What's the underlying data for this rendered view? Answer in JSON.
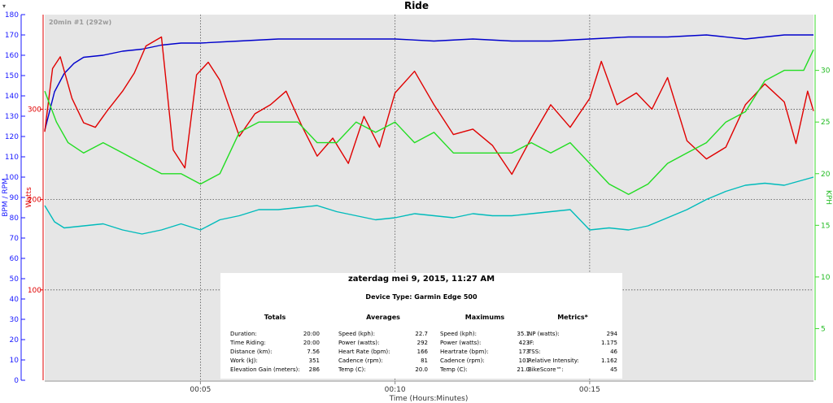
{
  "window": {
    "title": "Ride",
    "segment_label": "20min #1 (292w)",
    "caret": "▾"
  },
  "chart_data": {
    "type": "line",
    "title": "Ride",
    "xlabel": "Time (Hours:Minutes)",
    "xlim": [
      0,
      19.75
    ],
    "x_ticks": [
      {
        "value": 4,
        "label": "00:05"
      },
      {
        "value": 9,
        "label": "00:10"
      },
      {
        "value": 14,
        "label": "00:15"
      }
    ],
    "y_axes": [
      {
        "id": "bpm",
        "label": "BPM / RPM",
        "ylim": [
          0,
          180
        ],
        "ticks": [
          0,
          10,
          20,
          30,
          40,
          50,
          60,
          70,
          80,
          90,
          100,
          110,
          120,
          130,
          140,
          150,
          160,
          170,
          180
        ],
        "color": "#1a1aff"
      },
      {
        "id": "watts",
        "label": "Watts",
        "ylim": [
          0,
          404.7
        ],
        "ticks": [
          100,
          200,
          300
        ],
        "color": "#e00000"
      },
      {
        "id": "kph",
        "label": "KPH",
        "ylim": [
          0,
          35.4
        ],
        "ticks": [
          5,
          10,
          15,
          20,
          25,
          30
        ],
        "color": "#3bd82b"
      }
    ],
    "series": [
      {
        "name": "Heart Rate",
        "axis": "bpm",
        "color": "#0000cc",
        "x": [
          0,
          0.25,
          0.5,
          0.75,
          1,
          1.5,
          2,
          2.5,
          3,
          3.5,
          4,
          5,
          6,
          7,
          8,
          9,
          10,
          11,
          12,
          13,
          14,
          15,
          16,
          17,
          18,
          19,
          19.75
        ],
        "values": [
          123,
          142,
          151,
          156,
          159,
          160,
          162,
          163,
          165,
          166,
          166,
          167,
          168,
          168,
          168,
          168,
          167,
          168,
          167,
          167,
          168,
          169,
          169,
          170,
          168,
          170,
          170
        ]
      },
      {
        "name": "Power",
        "axis": "watts",
        "color": "#e00000",
        "x": [
          0,
          0.2,
          0.4,
          0.7,
          1,
          1.3,
          1.6,
          2,
          2.3,
          2.6,
          3,
          3.3,
          3.6,
          3.9,
          4.2,
          4.5,
          5,
          5.4,
          5.8,
          6.2,
          6.6,
          7,
          7.4,
          7.8,
          8.2,
          8.6,
          9,
          9.5,
          10,
          10.5,
          11,
          11.5,
          12,
          12.5,
          13,
          13.5,
          14,
          14.3,
          14.7,
          15.2,
          15.6,
          16,
          16.5,
          17,
          17.5,
          18,
          18.5,
          19,
          19.3,
          19.6,
          19.75
        ],
        "values": [
          275,
          345,
          358,
          312,
          285,
          280,
          298,
          320,
          340,
          370,
          380,
          255,
          235,
          338,
          352,
          332,
          270,
          295,
          305,
          320,
          282,
          248,
          268,
          240,
          292,
          258,
          318,
          342,
          305,
          272,
          278,
          260,
          228,
          268,
          305,
          280,
          312,
          353,
          305,
          318,
          300,
          335,
          265,
          245,
          258,
          305,
          328,
          308,
          262,
          320,
          298
        ]
      },
      {
        "name": "Cadence",
        "axis": "bpm",
        "color": "#00bbbb",
        "x": [
          0,
          0.25,
          0.5,
          1,
          1.5,
          2,
          2.5,
          3,
          3.5,
          4,
          4.5,
          5,
          5.5,
          6,
          6.5,
          7,
          7.5,
          8,
          8.5,
          9,
          9.5,
          10,
          10.5,
          11,
          11.5,
          12,
          12.5,
          13,
          13.5,
          14,
          14.5,
          15,
          15.5,
          16,
          16.5,
          17,
          17.5,
          18,
          18.5,
          19,
          19.75
        ],
        "values": [
          86,
          78,
          75,
          76,
          77,
          74,
          72,
          74,
          77,
          74,
          79,
          81,
          84,
          84,
          85,
          86,
          83,
          81,
          79,
          80,
          82,
          81,
          80,
          82,
          81,
          81,
          82,
          83,
          84,
          74,
          75,
          74,
          76,
          80,
          84,
          89,
          93,
          96,
          97,
          96,
          100
        ]
      },
      {
        "name": "Speed",
        "axis": "kph",
        "color": "#22dd22",
        "x": [
          0,
          0.3,
          0.6,
          1,
          1.5,
          2,
          2.5,
          3,
          3.5,
          4,
          4.5,
          5,
          5.5,
          6,
          6.5,
          7,
          7.5,
          8,
          8.5,
          9,
          9.5,
          10,
          10.5,
          11,
          11.5,
          12,
          12.5,
          13,
          13.5,
          14,
          14.5,
          15,
          15.5,
          16,
          16.5,
          17,
          17.5,
          18,
          18.5,
          19,
          19.5,
          19.75
        ],
        "values": [
          28,
          25,
          23,
          22,
          23,
          22,
          21,
          20,
          20,
          19,
          20,
          24,
          25,
          25,
          25,
          23,
          23,
          25,
          24,
          25,
          23,
          24,
          22,
          22,
          22,
          22,
          23,
          22,
          23,
          21,
          19,
          18,
          19,
          21,
          22,
          23,
          25,
          26,
          29,
          30,
          30,
          32
        ]
      }
    ],
    "legend": "none",
    "grid": "dotted"
  },
  "summary": {
    "date": "zaterdag mei 9, 2015, 11:27 AM",
    "device": "Device Type: Garmin Edge 500",
    "columns": [
      {
        "heading": "Totals",
        "rows": [
          {
            "label": "Duration:",
            "value": "20:00"
          },
          {
            "label": "Time Riding:",
            "value": "20:00"
          },
          {
            "label": "Distance (km):",
            "value": "7.56"
          },
          {
            "label": "Work (kJ):",
            "value": "351"
          },
          {
            "label": "Elevation Gain (meters):",
            "value": "286"
          }
        ]
      },
      {
        "heading": "Averages",
        "rows": [
          {
            "label": "Speed (kph):",
            "value": "22.7"
          },
          {
            "label": "Power (watts):",
            "value": "292"
          },
          {
            "label": "Heart Rate (bpm):",
            "value": "166"
          },
          {
            "label": "Cadence (rpm):",
            "value": "81"
          },
          {
            "label": "Temp (C):",
            "value": "20.0"
          }
        ]
      },
      {
        "heading": "Maximums",
        "rows": [
          {
            "label": "Speed (kph):",
            "value": "35.1"
          },
          {
            "label": "Power (watts):",
            "value": "423"
          },
          {
            "label": "Heartrate (bpm):",
            "value": "173"
          },
          {
            "label": "Cadence (rpm):",
            "value": "101"
          },
          {
            "label": "Temp (C):",
            "value": "21.0"
          }
        ]
      },
      {
        "heading": "Metrics*",
        "rows": [
          {
            "label": "NP (watts):",
            "value": "294"
          },
          {
            "label": "IF:",
            "value": "1.175"
          },
          {
            "label": "TSS:",
            "value": "46"
          },
          {
            "label": "Relative Intensity:",
            "value": "1.162"
          },
          {
            "label": "BikeScore™:",
            "value": "45"
          }
        ]
      }
    ]
  }
}
